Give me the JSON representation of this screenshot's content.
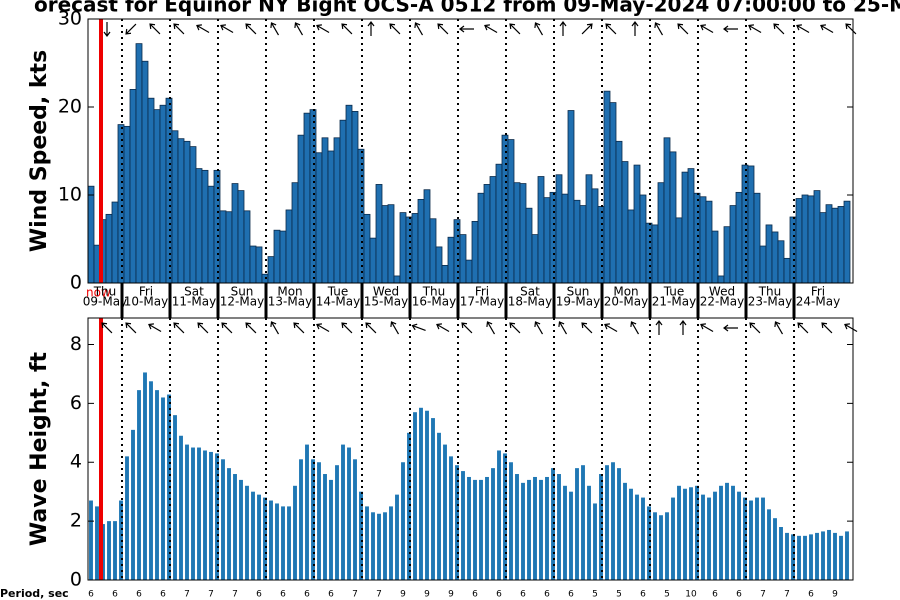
{
  "title": "orecast for Equinor NY Bight OCS-A 0512 from 09-May-2024 07:00:00 to 25-M",
  "now_label": "now",
  "day_labels": [
    {
      "weekday": "Thu",
      "date": "09-May"
    },
    {
      "weekday": "Fri",
      "date": "10-May"
    },
    {
      "weekday": "Sat",
      "date": "11-May"
    },
    {
      "weekday": "Sun",
      "date": "12-May"
    },
    {
      "weekday": "Mon",
      "date": "13-May"
    },
    {
      "weekday": "Tue",
      "date": "14-May"
    },
    {
      "weekday": "Wed",
      "date": "15-May"
    },
    {
      "weekday": "Thu",
      "date": "16-May"
    },
    {
      "weekday": "Fri",
      "date": "17-May"
    },
    {
      "weekday": "Sat",
      "date": "18-May"
    },
    {
      "weekday": "Sun",
      "date": "19-May"
    },
    {
      "weekday": "Mon",
      "date": "20-May"
    },
    {
      "weekday": "Tue",
      "date": "21-May"
    },
    {
      "weekday": "Wed",
      "date": "22-May"
    },
    {
      "weekday": "Thu",
      "date": "23-May"
    },
    {
      "weekday": "Fri",
      "date": "24-May"
    }
  ],
  "chart_data": [
    {
      "type": "bar",
      "y_label": "Wind Speed, kts",
      "color": "#1f6fb0",
      "ylim": [
        0,
        30
      ],
      "yticks": [
        0,
        10,
        20,
        30
      ],
      "values": [
        11,
        4.3,
        7.2,
        7.8,
        9.2,
        18,
        17.8,
        22,
        27.2,
        25.2,
        21,
        19.7,
        20.2,
        21,
        17.3,
        16.4,
        16.1,
        15.5,
        13,
        12.8,
        11,
        12.8,
        8.2,
        8.1,
        11.3,
        10.5,
        8.2,
        4.2,
        4.1,
        1.0,
        3,
        6,
        5.9,
        8.3,
        11.4,
        16.8,
        19.3,
        19.7,
        14.8,
        16.5,
        15,
        16.5,
        18.5,
        20.2,
        19.5,
        15.2,
        7.8,
        5.1,
        11.2,
        8.8,
        8.9,
        0.8,
        8,
        7.5,
        7.9,
        9.5,
        10.6,
        7.3,
        4.1,
        2.0,
        5.2,
        7.2,
        5.5,
        2.6,
        7,
        10.2,
        11.2,
        12.1,
        13.5,
        16.8,
        16.3,
        11.4,
        11.3,
        8.5,
        5.5,
        12.1,
        9.7,
        10.3,
        12.3,
        10.1,
        19.6,
        9.4,
        8.8,
        12.3,
        10.7,
        8.7,
        21.8,
        20.5,
        16.1,
        13.8,
        8.3,
        13.4,
        10,
        6.8,
        6.6,
        11.4,
        16.5,
        14.9,
        7.4,
        12.6,
        13,
        10.2,
        9.8,
        9.3,
        5.9,
        0.8,
        6.4,
        8.8,
        10.3,
        13.4,
        13.3,
        10.2,
        4.2,
        6.6,
        5.8,
        4.8,
        2.8,
        7.5,
        9.6,
        10,
        9.9,
        10.5,
        8,
        8.9,
        8.5,
        8.7,
        9.3
      ],
      "directions": [
        180,
        225,
        315,
        315,
        300,
        300,
        315,
        330,
        330,
        300,
        315,
        0,
        315,
        330,
        315,
        270,
        300,
        315,
        330,
        0,
        45,
        315,
        0,
        330,
        315,
        300,
        270,
        300,
        315,
        300,
        300,
        315
      ]
    },
    {
      "type": "bar",
      "y_label": "Wave Height, ft",
      "color": "#1f77b4",
      "ylim": [
        0,
        8.9
      ],
      "yticks": [
        0,
        2,
        4,
        6,
        8
      ],
      "values": [
        2.7,
        2.5,
        1.9,
        2.0,
        2.0,
        2.7,
        4.2,
        5.1,
        6.45,
        7.05,
        6.75,
        6.45,
        6.2,
        6.3,
        5.6,
        4.9,
        4.6,
        4.5,
        4.5,
        4.4,
        4.35,
        4.3,
        4.1,
        3.8,
        3.6,
        3.4,
        3.2,
        3.0,
        2.9,
        2.8,
        2.7,
        2.6,
        2.5,
        2.5,
        3.2,
        4.1,
        4.6,
        4.1,
        4.0,
        3.6,
        3.4,
        3.9,
        4.6,
        4.5,
        4.1,
        3.0,
        2.5,
        2.3,
        2.25,
        2.3,
        2.5,
        2.9,
        4.0,
        5.0,
        5.7,
        5.85,
        5.75,
        5.5,
        5.0,
        4.6,
        4.2,
        3.9,
        3.7,
        3.5,
        3.4,
        3.4,
        3.5,
        3.8,
        4.4,
        4.3,
        4.0,
        3.6,
        3.3,
        3.4,
        3.5,
        3.4,
        3.5,
        3.8,
        3.6,
        3.2,
        3.0,
        3.8,
        3.9,
        3.2,
        2.6,
        3.6,
        3.9,
        4.0,
        3.8,
        3.3,
        3.1,
        2.9,
        2.8,
        2.5,
        2.3,
        2.2,
        2.3,
        2.8,
        3.2,
        3.1,
        3.15,
        3.2,
        2.9,
        2.8,
        3.0,
        3.2,
        3.3,
        3.2,
        3.0,
        2.8,
        2.7,
        2.8,
        2.8,
        2.4,
        2.1,
        1.8,
        1.6,
        1.55,
        1.5,
        1.5,
        1.55,
        1.6,
        1.65,
        1.7,
        1.6,
        1.5,
        1.65
      ],
      "directions": [
        315,
        315,
        300,
        315,
        315,
        315,
        315,
        330,
        315,
        300,
        315,
        315,
        330,
        290,
        300,
        315,
        330,
        315,
        330,
        330,
        315,
        300,
        330,
        0,
        0,
        300,
        270,
        315,
        330,
        315,
        315,
        300
      ],
      "period_label": "Period, sec",
      "period_values": [
        6,
        6,
        6,
        6,
        7,
        7,
        7,
        6,
        6,
        6,
        6,
        7,
        7,
        9,
        9,
        9,
        6,
        6,
        6,
        6,
        6,
        5,
        5,
        6,
        5,
        10,
        6,
        6,
        7,
        7,
        6,
        9
      ]
    }
  ]
}
